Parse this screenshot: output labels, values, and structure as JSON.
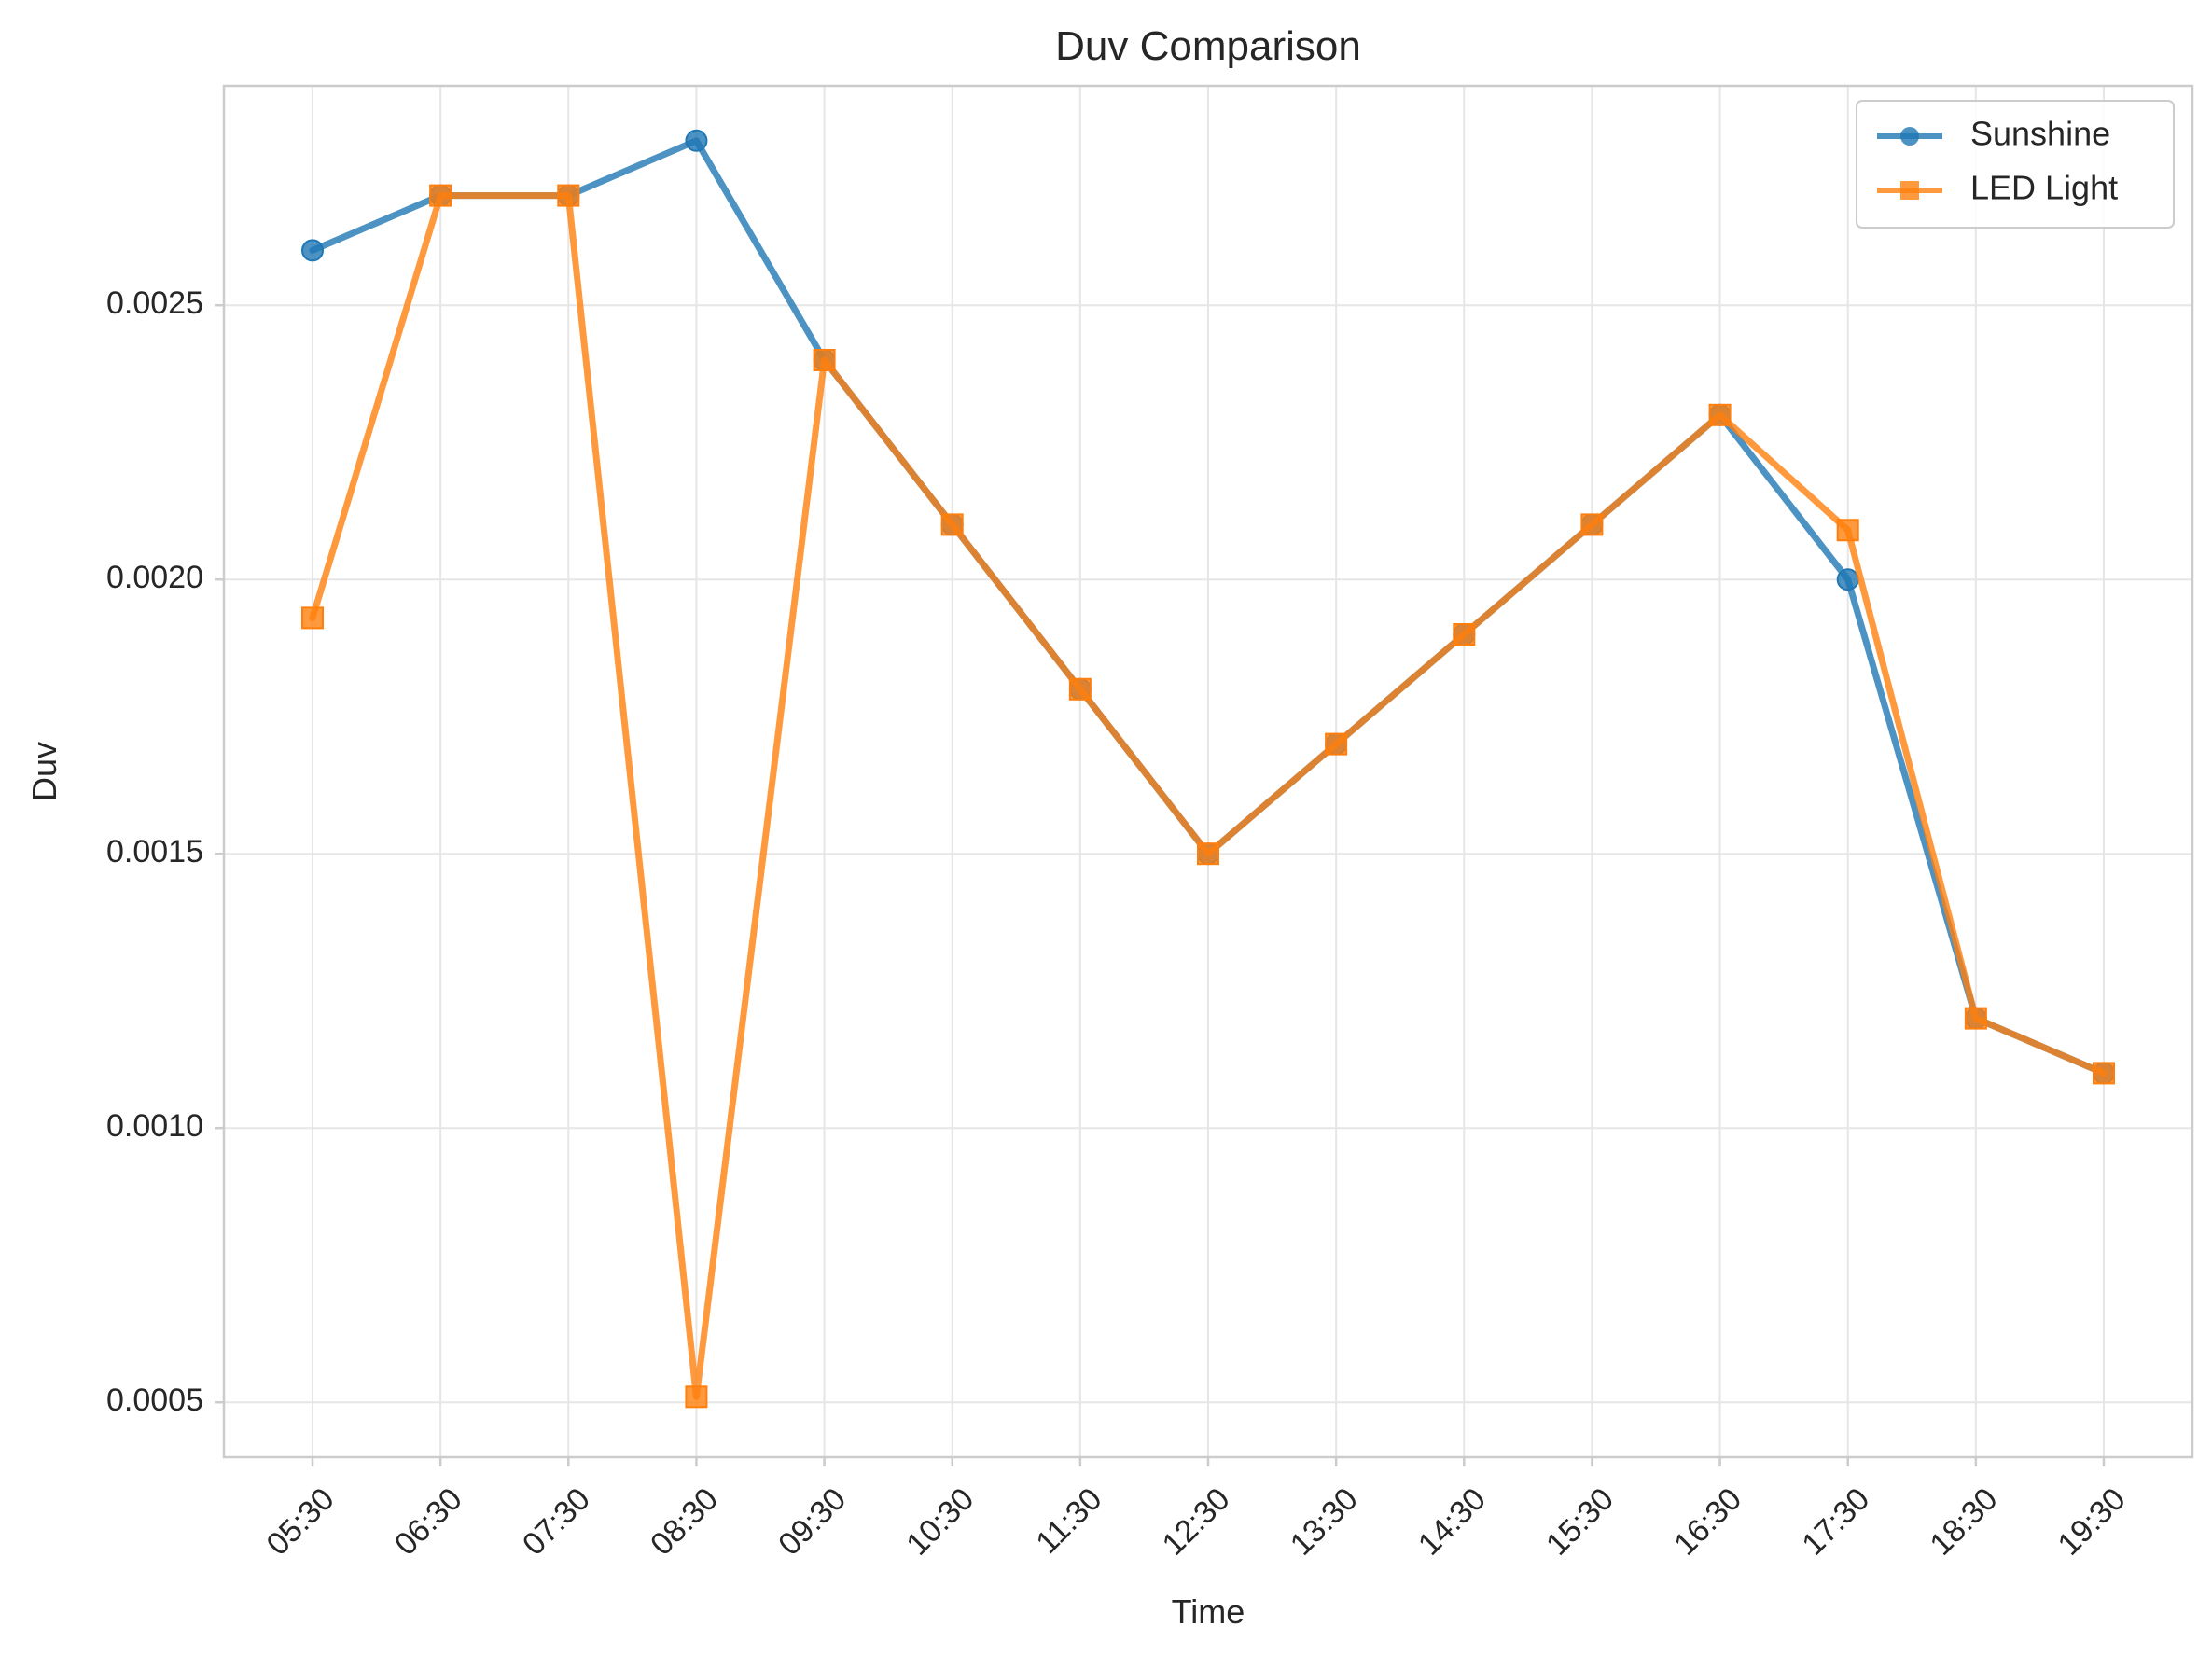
{
  "chart_data": {
    "type": "line",
    "title": "Duv Comparison",
    "xlabel": "Time",
    "ylabel": "Duv",
    "categories": [
      "05:30",
      "06:30",
      "07:30",
      "08:30",
      "09:30",
      "10:30",
      "11:30",
      "12:30",
      "13:30",
      "14:30",
      "15:30",
      "16:30",
      "17:30",
      "18:30",
      "19:30"
    ],
    "ylim": [
      0.0004,
      0.0029
    ],
    "yticks": [
      0.0005,
      0.001,
      0.0015,
      0.002,
      0.0025
    ],
    "ytick_labels": [
      "0.0005",
      "0.0010",
      "0.0015",
      "0.0020",
      "0.0025"
    ],
    "grid": true,
    "legend_position": "top-right",
    "series": [
      {
        "name": "Sunshine",
        "color": "#1f77b4",
        "marker": "circle",
        "values": [
          0.0026,
          0.0027,
          0.0027,
          0.0028,
          0.0024,
          0.0021,
          0.0018,
          0.0015,
          0.0017,
          0.0019,
          0.0021,
          0.0023,
          0.002,
          0.0012,
          0.0011
        ]
      },
      {
        "name": "LED Light",
        "color": "#ff7f0e",
        "marker": "square",
        "values": [
          0.00193,
          0.0027,
          0.0027,
          0.00051,
          0.0024,
          0.0021,
          0.0018,
          0.0015,
          0.0017,
          0.0019,
          0.0021,
          0.0023,
          0.00209,
          0.0012,
          0.0011
        ]
      }
    ]
  }
}
